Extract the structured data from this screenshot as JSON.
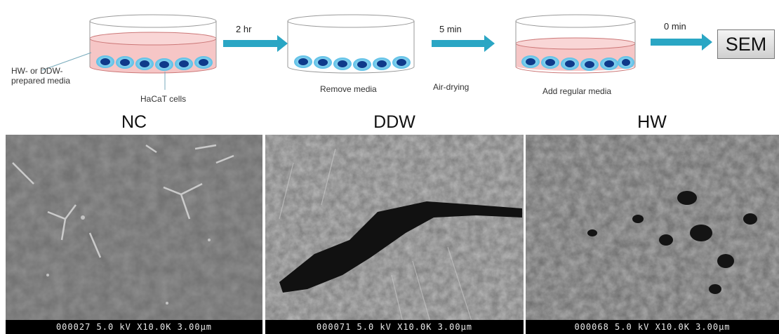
{
  "workflow": {
    "left_label": "HW- or DDW-\nprepared media",
    "cells_label": "HaCaT cells",
    "steps": [
      {
        "time": "2 hr",
        "caption": "Remove media"
      },
      {
        "time": "5 min",
        "caption": "Air-drying"
      },
      {
        "time": "0 min",
        "caption": "Add regular media"
      }
    ],
    "end_label": "SEM"
  },
  "panels": [
    {
      "title": "NC",
      "scale_bar": "000027 5.0 kV X10.0K 3.00µm"
    },
    {
      "title": "DDW",
      "scale_bar": "000071 5.0 kV X10.0K 3.00µm"
    },
    {
      "title": "HW",
      "scale_bar": "000068 5.0 kV X10.0K 3.00µm"
    }
  ],
  "colors": {
    "arrow": "#2aa6c4",
    "media": "#f4b6b6",
    "cell_outer": "#7fd0ee",
    "cell_nucleus": "#0f3a8a"
  }
}
